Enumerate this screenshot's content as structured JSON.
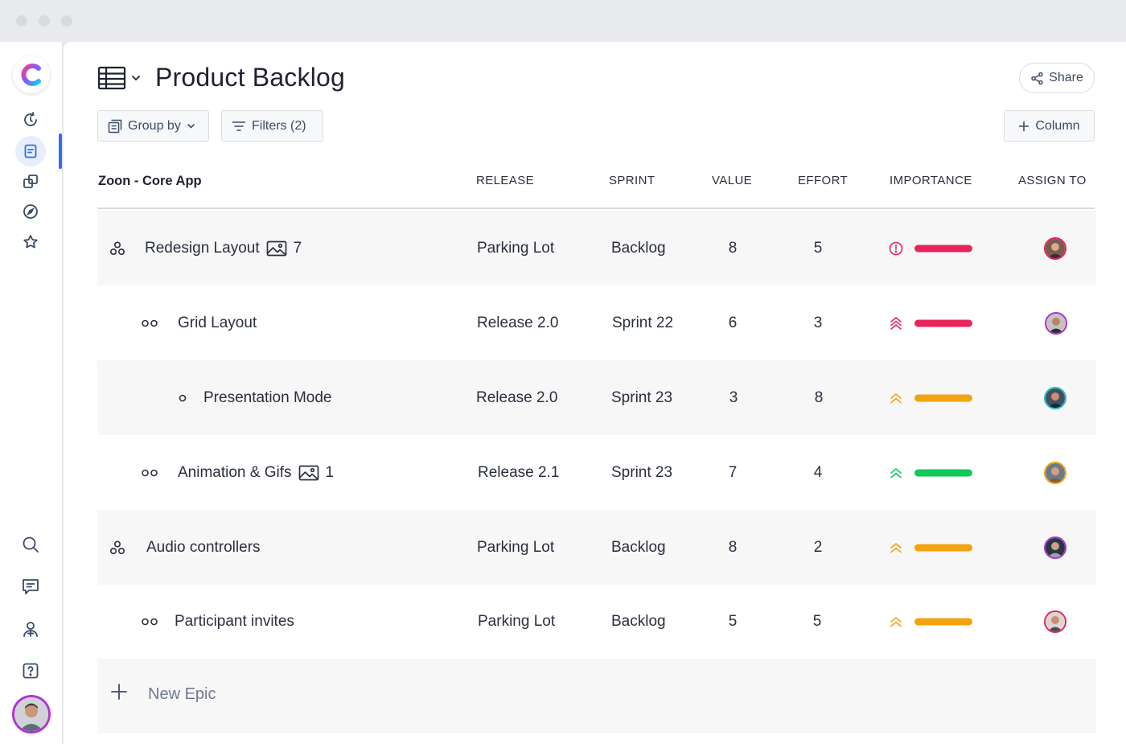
{
  "window": {
    "traffic_lights": [
      "close",
      "minimize",
      "maximize"
    ]
  },
  "sidebar": {
    "logo": "clickup-logo",
    "top_items": [
      {
        "icon": "refresh-timer-icon",
        "active": false
      },
      {
        "icon": "document-icon",
        "active": true
      },
      {
        "icon": "layers-icon",
        "active": false
      },
      {
        "icon": "compass-icon",
        "active": false
      },
      {
        "icon": "star-icon",
        "active": false
      }
    ],
    "bottom_items": [
      {
        "icon": "search-icon"
      },
      {
        "icon": "chat-icon"
      },
      {
        "icon": "add-user-icon"
      },
      {
        "icon": "help-icon"
      }
    ],
    "accent": "#2f6fe8"
  },
  "header": {
    "title": "Product Backlog",
    "share_label": "Share",
    "group_by_label": "Group by",
    "filters_label": "Filters (2)",
    "column_label": "Column"
  },
  "table": {
    "project_name": "Zoon - Core App",
    "columns": [
      "RELEASE",
      "SPRINT",
      "VALUE",
      "EFFORT",
      "IMPORTANCE",
      "ASSIGN TO"
    ],
    "rows": [
      {
        "level": 0,
        "name": "Redesign Layout",
        "attachments": "7",
        "release": "Parking Lot",
        "sprint": "Backlog",
        "value": "8",
        "effort": "5",
        "importance_icon": "alert-circle-icon",
        "importance_color": "#e8245b",
        "avatar_color": "#e8245b"
      },
      {
        "level": 1,
        "name": "Grid Layout",
        "attachments": "",
        "release": "Release 2.0",
        "sprint": "Sprint 22",
        "value": "6",
        "effort": "3",
        "importance_icon": "triple-chevron-up-icon",
        "importance_color": "#e8245b",
        "avatar_color": "#a433d6"
      },
      {
        "level": 2,
        "name": "Presentation Mode",
        "attachments": "",
        "release": "Release 2.0",
        "sprint": "Sprint 23",
        "value": "3",
        "effort": "8",
        "importance_icon": "double-chevron-up-icon",
        "importance_color": "#f2a30f",
        "avatar_color": "#1fc2c2"
      },
      {
        "level": 1,
        "name": "Animation & Gifs",
        "attachments": "1",
        "release": "Release 2.1",
        "sprint": "Sprint 23",
        "value": "7",
        "effort": "4",
        "importance_icon": "double-chevron-up-icon",
        "importance_color": "#12c95a",
        "avatar_color": "#f2a30f"
      },
      {
        "level": 0,
        "name": "Audio controllers",
        "attachments": "",
        "release": "Parking Lot",
        "sprint": "Backlog",
        "value": "8",
        "effort": "2",
        "importance_icon": "double-chevron-up-icon",
        "importance_color": "#f2a30f",
        "avatar_color": "#a433d6"
      },
      {
        "level": 1,
        "name": "Participant invites",
        "attachments": "",
        "release": "Parking Lot",
        "sprint": "Backlog",
        "value": "5",
        "effort": "5",
        "importance_icon": "double-chevron-up-icon",
        "importance_color": "#f2a30f",
        "avatar_color": "#e8245b"
      }
    ],
    "new_epic_label": "New Epic"
  }
}
